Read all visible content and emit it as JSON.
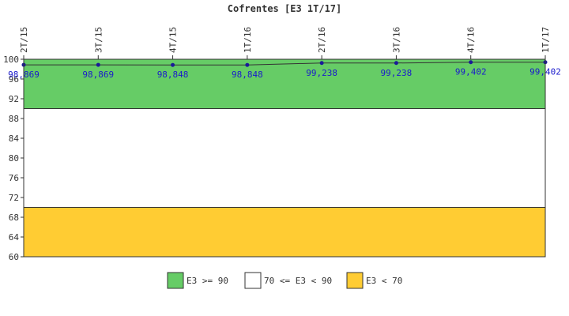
{
  "chart_data": {
    "type": "line",
    "title": "Cofrentes [E3 1T/17]",
    "categories": [
      "2T/15",
      "3T/15",
      "4T/15",
      "1T/16",
      "2T/16",
      "3T/16",
      "4T/16",
      "1T/17"
    ],
    "series": [
      {
        "values": [
          98.869,
          98.869,
          98.848,
          98.848,
          99.238,
          99.238,
          99.402,
          99.402
        ]
      }
    ],
    "data_labels": [
      "98,869",
      "98,869",
      "98,848",
      "98,848",
      "99,238",
      "99,238",
      "99,402",
      "99,402"
    ],
    "ylim": [
      60,
      100
    ],
    "yticks": [
      60,
      64,
      68,
      72,
      76,
      80,
      84,
      88,
      92,
      96,
      100
    ],
    "ytick_labels": [
      "60",
      "64",
      "68",
      "72",
      "76",
      "80",
      "84",
      "88",
      "92",
      "96",
      "100"
    ],
    "bands": [
      {
        "from": 90,
        "to": 100,
        "color": "#66cc66",
        "label": "E3 >= 90"
      },
      {
        "from": 70,
        "to": 90,
        "color": "#ffffff",
        "label": "70 <= E3 < 90"
      },
      {
        "from": 60,
        "to": 70,
        "color": "#ffcc33",
        "label": "E3 < 70"
      }
    ],
    "line_color": "#333333",
    "marker_color": "#1a1a99",
    "label_color": "#1a1acc",
    "legend_position": "bottom"
  }
}
